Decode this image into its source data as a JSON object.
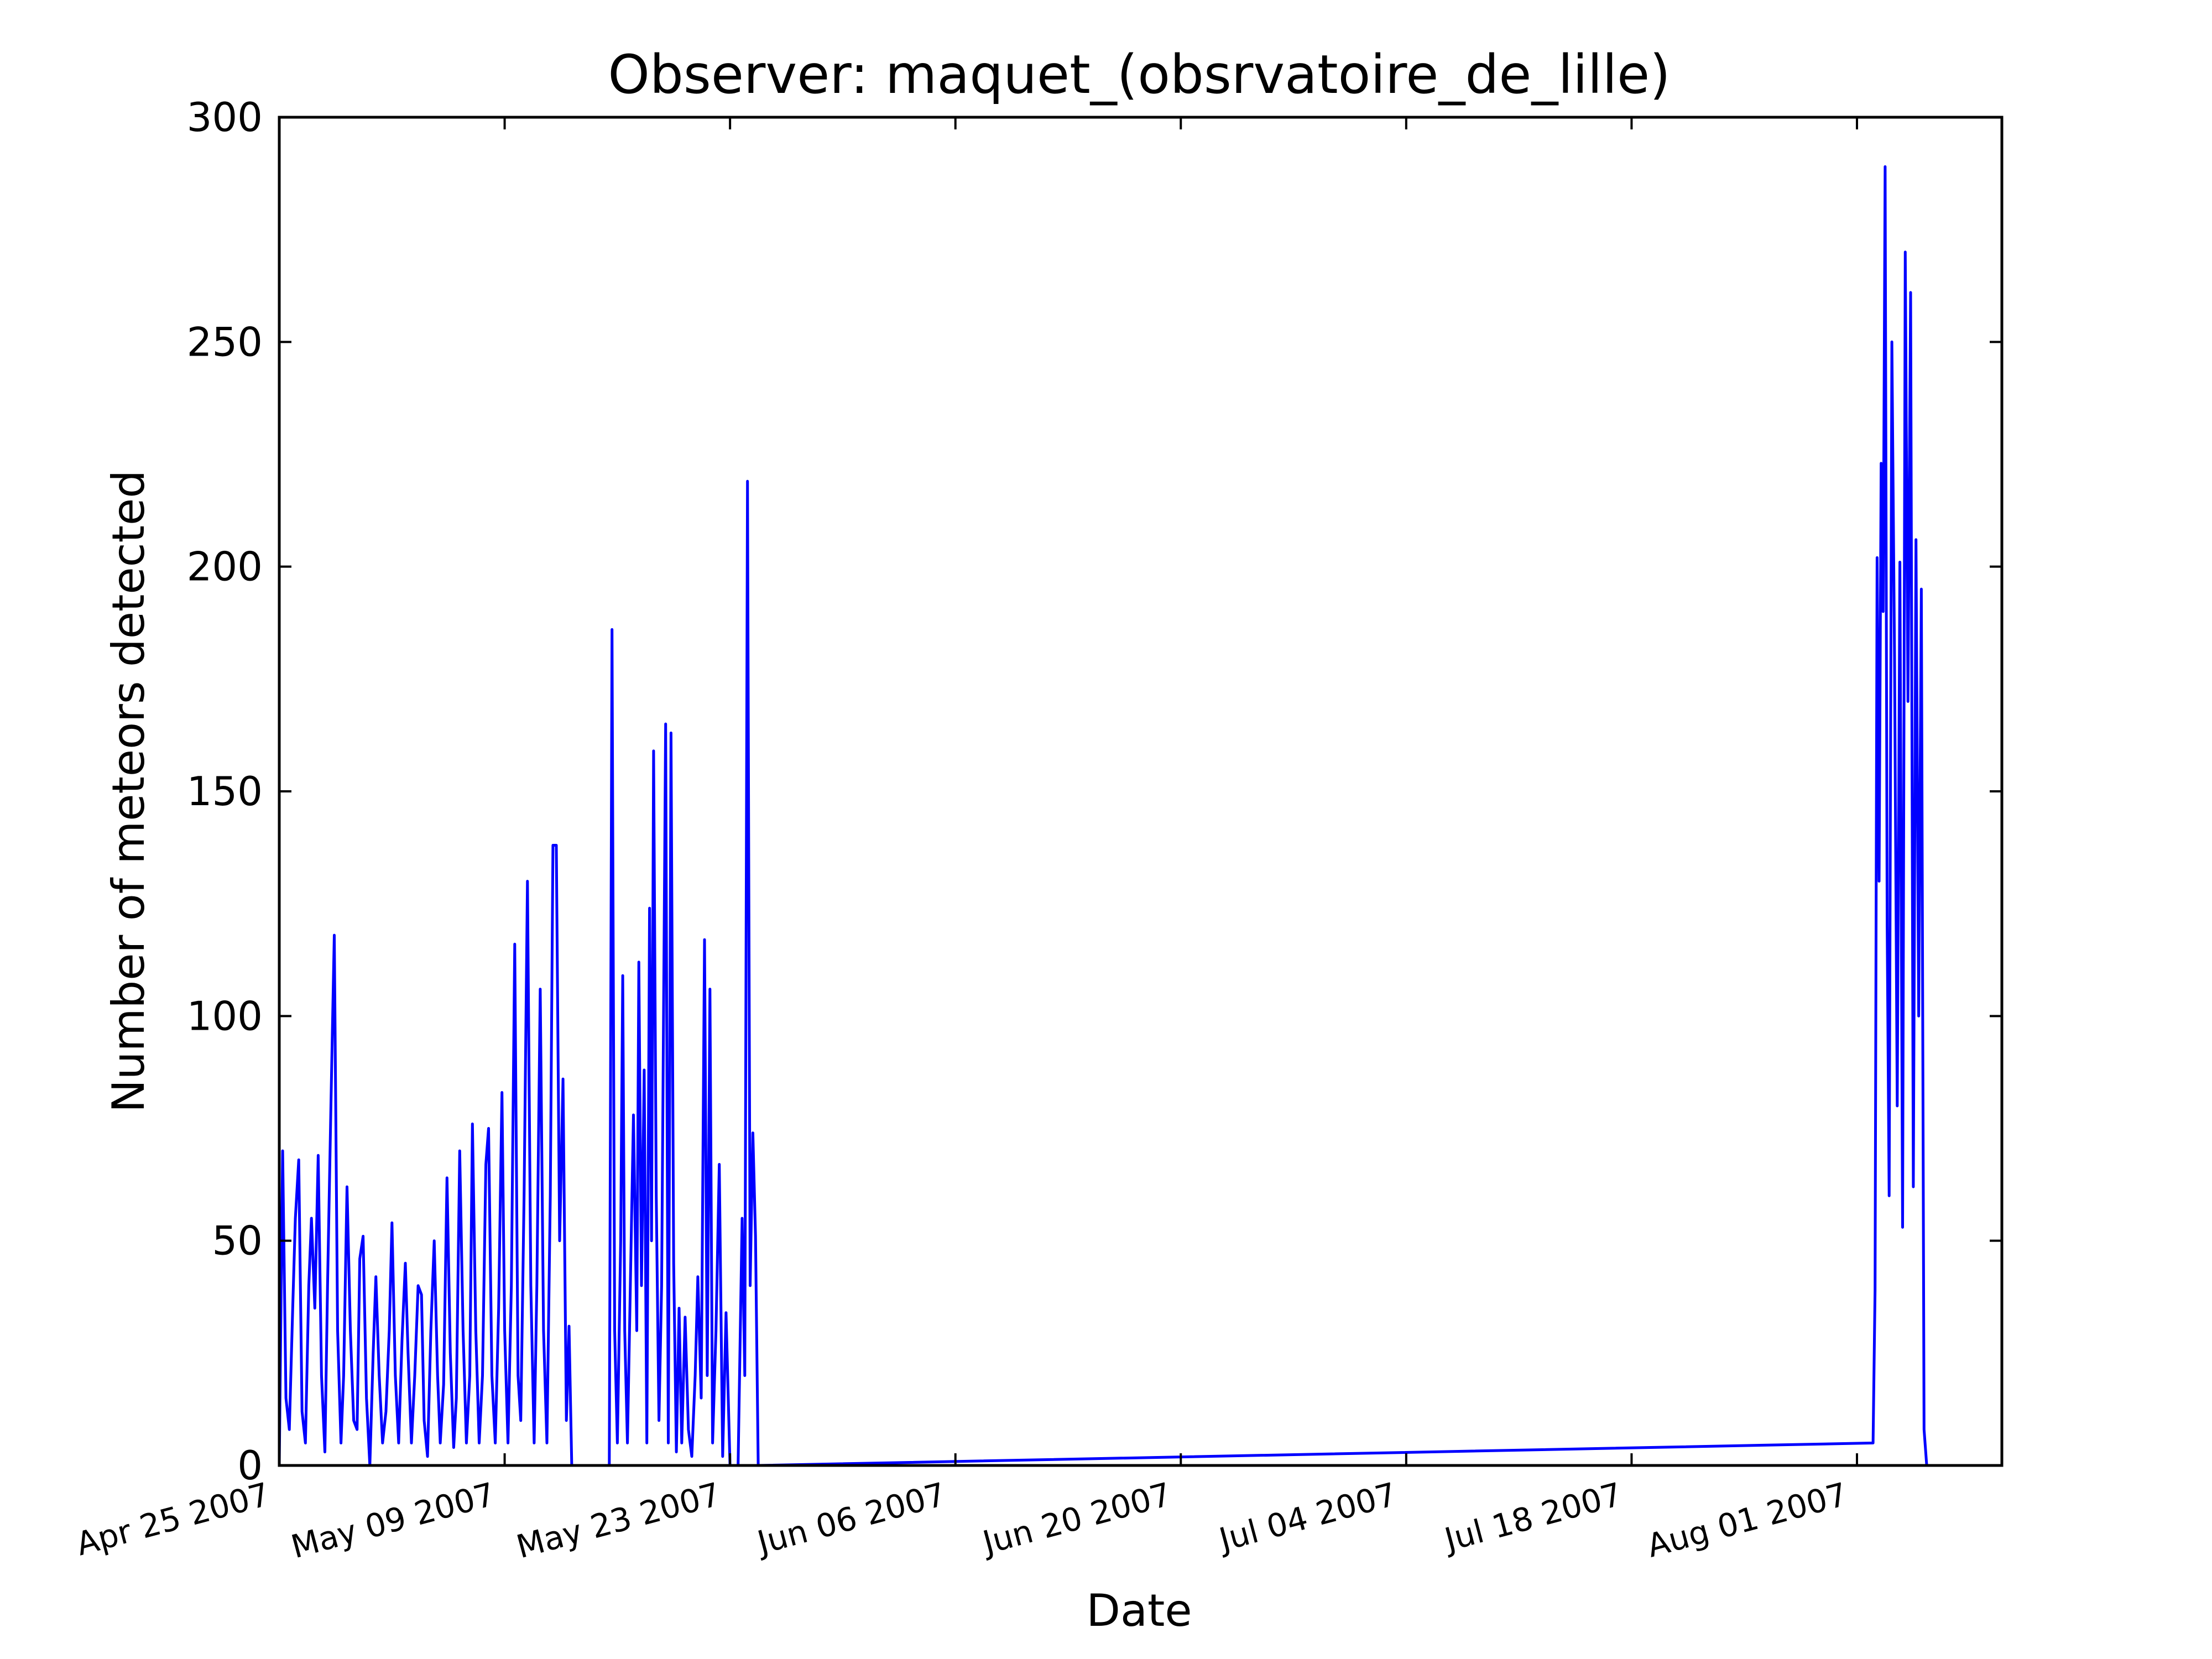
{
  "chart_data": {
    "type": "line",
    "title": "Observer: maquet_(obsrvatoire_de_lille)",
    "xlabel": "Date",
    "ylabel": "Number of meteors detected",
    "ylim": [
      0,
      300
    ],
    "xlim": [
      "2007-04-25",
      "2007-08-10"
    ],
    "yticks": [
      0,
      50,
      100,
      150,
      200,
      250,
      300
    ],
    "xticks": [
      {
        "date": "2007-04-25",
        "label": "Apr 25 2007"
      },
      {
        "date": "2007-05-09",
        "label": "May 09 2007"
      },
      {
        "date": "2007-05-23",
        "label": "May 23 2007"
      },
      {
        "date": "2007-06-06",
        "label": "Jun 06 2007"
      },
      {
        "date": "2007-06-20",
        "label": "Jun 20 2007"
      },
      {
        "date": "2007-07-04",
        "label": "Jul 04 2007"
      },
      {
        "date": "2007-07-18",
        "label": "Jul 18 2007"
      },
      {
        "date": "2007-08-01",
        "label": "Aug 01 2007"
      }
    ],
    "grid": false,
    "color": "#0000ff",
    "series": [
      {
        "name": "",
        "points": [
          [
            "2007-04-25T00:00",
            0
          ],
          [
            "2007-04-25T05:00",
            70
          ],
          [
            "2007-04-25T10:00",
            15
          ],
          [
            "2007-04-25T15:00",
            8
          ],
          [
            "2007-04-25T20:00",
            35
          ],
          [
            "2007-04-26T00:00",
            55
          ],
          [
            "2007-04-26T05:00",
            68
          ],
          [
            "2007-04-26T10:00",
            12
          ],
          [
            "2007-04-26T15:00",
            5
          ],
          [
            "2007-04-26T20:00",
            40
          ],
          [
            "2007-04-27T00:00",
            55
          ],
          [
            "2007-04-27T05:00",
            35
          ],
          [
            "2007-04-27T10:00",
            69
          ],
          [
            "2007-04-27T15:00",
            20
          ],
          [
            "2007-04-27T20:00",
            3
          ],
          [
            "2007-04-28T00:00",
            40
          ],
          [
            "2007-04-28T05:00",
            80
          ],
          [
            "2007-04-28T10:00",
            118
          ],
          [
            "2007-04-28T15:00",
            30
          ],
          [
            "2007-04-28T20:00",
            5
          ],
          [
            "2007-04-29T00:00",
            20
          ],
          [
            "2007-04-29T05:00",
            62
          ],
          [
            "2007-04-29T10:00",
            30
          ],
          [
            "2007-04-29T15:00",
            10
          ],
          [
            "2007-04-29T20:00",
            8
          ],
          [
            "2007-04-30T00:00",
            46
          ],
          [
            "2007-04-30T05:00",
            51
          ],
          [
            "2007-04-30T10:00",
            15
          ],
          [
            "2007-04-30T15:00",
            0
          ],
          [
            "2007-04-30T20:00",
            25
          ],
          [
            "2007-05-01T00:00",
            42
          ],
          [
            "2007-05-01T05:00",
            20
          ],
          [
            "2007-05-01T10:00",
            5
          ],
          [
            "2007-05-01T15:00",
            12
          ],
          [
            "2007-05-01T20:00",
            30
          ],
          [
            "2007-05-02T00:00",
            54
          ],
          [
            "2007-05-02T05:00",
            20
          ],
          [
            "2007-05-02T10:00",
            5
          ],
          [
            "2007-05-02T15:00",
            28
          ],
          [
            "2007-05-02T20:00",
            45
          ],
          [
            "2007-05-03T00:00",
            25
          ],
          [
            "2007-05-03T05:00",
            5
          ],
          [
            "2007-05-03T10:00",
            20
          ],
          [
            "2007-05-03T15:00",
            40
          ],
          [
            "2007-05-03T20:00",
            38
          ],
          [
            "2007-05-04T00:00",
            10
          ],
          [
            "2007-05-04T05:00",
            2
          ],
          [
            "2007-05-04T10:00",
            30
          ],
          [
            "2007-05-04T15:00",
            50
          ],
          [
            "2007-05-04T20:00",
            20
          ],
          [
            "2007-05-05T00:00",
            5
          ],
          [
            "2007-05-05T05:00",
            18
          ],
          [
            "2007-05-05T10:00",
            64
          ],
          [
            "2007-05-05T15:00",
            25
          ],
          [
            "2007-05-05T20:00",
            4
          ],
          [
            "2007-05-06T00:00",
            15
          ],
          [
            "2007-05-06T05:00",
            70
          ],
          [
            "2007-05-06T10:00",
            30
          ],
          [
            "2007-05-06T15:00",
            5
          ],
          [
            "2007-05-06T20:00",
            20
          ],
          [
            "2007-05-07T00:00",
            76
          ],
          [
            "2007-05-07T05:00",
            30
          ],
          [
            "2007-05-07T10:00",
            5
          ],
          [
            "2007-05-07T15:00",
            20
          ],
          [
            "2007-05-07T20:00",
            67
          ],
          [
            "2007-05-08T00:00",
            75
          ],
          [
            "2007-05-08T05:00",
            20
          ],
          [
            "2007-05-08T10:00",
            5
          ],
          [
            "2007-05-08T15:00",
            35
          ],
          [
            "2007-05-08T20:00",
            83
          ],
          [
            "2007-05-09T00:00",
            30
          ],
          [
            "2007-05-09T05:00",
            5
          ],
          [
            "2007-05-09T10:00",
            40
          ],
          [
            "2007-05-09T15:00",
            116
          ],
          [
            "2007-05-09T20:00",
            20
          ],
          [
            "2007-05-10T00:00",
            10
          ],
          [
            "2007-05-10T05:00",
            60
          ],
          [
            "2007-05-10T10:00",
            130
          ],
          [
            "2007-05-10T15:00",
            40
          ],
          [
            "2007-05-10T20:00",
            5
          ],
          [
            "2007-05-11T00:00",
            40
          ],
          [
            "2007-05-11T05:00",
            106
          ],
          [
            "2007-05-11T10:00",
            30
          ],
          [
            "2007-05-11T15:00",
            5
          ],
          [
            "2007-05-11T20:00",
            60
          ],
          [
            "2007-05-12T00:00",
            138
          ],
          [
            "2007-05-12T05:00",
            138
          ],
          [
            "2007-05-12T10:00",
            50
          ],
          [
            "2007-05-12T15:00",
            86
          ],
          [
            "2007-05-12T20:00",
            10
          ],
          [
            "2007-05-13T00:00",
            31
          ],
          [
            "2007-05-13T04:00",
            0
          ],
          [
            "2007-05-15T12:00",
            0
          ],
          [
            "2007-05-15T16:00",
            186
          ],
          [
            "2007-05-15T20:00",
            30
          ],
          [
            "2007-05-16T00:00",
            5
          ],
          [
            "2007-05-16T05:00",
            50
          ],
          [
            "2007-05-16T08:00",
            109
          ],
          [
            "2007-05-16T11:00",
            30
          ],
          [
            "2007-05-16T15:00",
            5
          ],
          [
            "2007-05-16T20:00",
            45
          ],
          [
            "2007-05-17T00:00",
            78
          ],
          [
            "2007-05-17T05:00",
            30
          ],
          [
            "2007-05-17T08:00",
            112
          ],
          [
            "2007-05-17T12:00",
            40
          ],
          [
            "2007-05-17T16:00",
            88
          ],
          [
            "2007-05-17T20:00",
            5
          ],
          [
            "2007-05-18T00:00",
            124
          ],
          [
            "2007-05-18T03:00",
            50
          ],
          [
            "2007-05-18T06:00",
            159
          ],
          [
            "2007-05-18T10:00",
            60
          ],
          [
            "2007-05-18T14:00",
            10
          ],
          [
            "2007-05-18T18:00",
            40
          ],
          [
            "2007-05-19T00:00",
            165
          ],
          [
            "2007-05-19T04:00",
            5
          ],
          [
            "2007-05-19T08:00",
            163
          ],
          [
            "2007-05-19T12:00",
            45
          ],
          [
            "2007-05-19T16:00",
            3
          ],
          [
            "2007-05-19T20:00",
            35
          ],
          [
            "2007-05-20T00:00",
            5
          ],
          [
            "2007-05-20T05:00",
            33
          ],
          [
            "2007-05-20T10:00",
            8
          ],
          [
            "2007-05-20T15:00",
            2
          ],
          [
            "2007-05-20T20:00",
            20
          ],
          [
            "2007-05-21T00:00",
            42
          ],
          [
            "2007-05-21T05:00",
            15
          ],
          [
            "2007-05-21T10:00",
            117
          ],
          [
            "2007-05-21T14:00",
            20
          ],
          [
            "2007-05-21T18:00",
            106
          ],
          [
            "2007-05-21T22:00",
            5
          ],
          [
            "2007-05-22T03:00",
            30
          ],
          [
            "2007-05-22T08:00",
            67
          ],
          [
            "2007-05-22T13:00",
            2
          ],
          [
            "2007-05-22T18:00",
            34
          ],
          [
            "2007-05-23T00:00",
            0
          ],
          [
            "2007-05-23T12:00",
            0
          ],
          [
            "2007-05-23T18:00",
            55
          ],
          [
            "2007-05-23T22:00",
            20
          ],
          [
            "2007-05-24T02:00",
            219
          ],
          [
            "2007-05-24T06:00",
            40
          ],
          [
            "2007-05-24T10:00",
            74
          ],
          [
            "2007-05-24T14:00",
            51
          ],
          [
            "2007-05-24T18:00",
            0
          ],
          [
            "2007-08-02T00:00",
            5
          ],
          [
            "2007-08-02T03:00",
            39
          ],
          [
            "2007-08-02T06:00",
            202
          ],
          [
            "2007-08-02T09:00",
            130
          ],
          [
            "2007-08-02T12:00",
            223
          ],
          [
            "2007-08-02T15:00",
            190
          ],
          [
            "2007-08-02T18:00",
            289
          ],
          [
            "2007-08-02T21:00",
            120
          ],
          [
            "2007-08-03T00:00",
            60
          ],
          [
            "2007-08-03T04:00",
            250
          ],
          [
            "2007-08-03T08:00",
            180
          ],
          [
            "2007-08-03T12:00",
            80
          ],
          [
            "2007-08-03T16:00",
            201
          ],
          [
            "2007-08-03T20:00",
            53
          ],
          [
            "2007-08-04T00:00",
            270
          ],
          [
            "2007-08-04T04:00",
            170
          ],
          [
            "2007-08-04T08:00",
            261
          ],
          [
            "2007-08-04T12:00",
            62
          ],
          [
            "2007-08-04T16:00",
            206
          ],
          [
            "2007-08-04T20:00",
            100
          ],
          [
            "2007-08-05T00:00",
            195
          ],
          [
            "2007-08-05T04:00",
            8
          ],
          [
            "2007-08-05T08:00",
            0
          ]
        ]
      }
    ]
  }
}
